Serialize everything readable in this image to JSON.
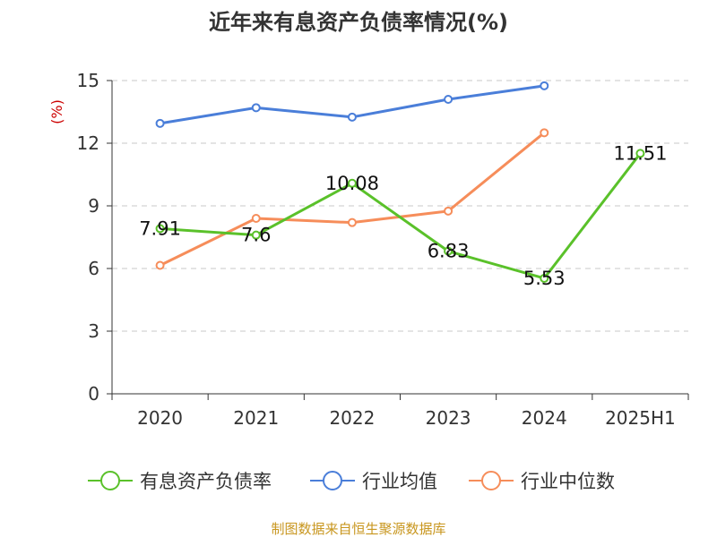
{
  "chart_data": {
    "type": "line",
    "title": "近年来有息资产负债率情况(%)",
    "y_unit": "(%)",
    "categories": [
      "2020",
      "2021",
      "2022",
      "2023",
      "2024",
      "2025H1"
    ],
    "ylim": [
      0,
      15
    ],
    "yticks": [
      0,
      3,
      6,
      9,
      12,
      15
    ],
    "grid": true,
    "legend_position": "bottom",
    "series": [
      {
        "name": "有息资产负债率",
        "color": "#5ac12a",
        "values": [
          7.91,
          7.6,
          10.08,
          6.83,
          5.53,
          11.51
        ],
        "labels": [
          "7.91",
          "7.6",
          "10.08",
          "6.83",
          "5.53",
          "11.51"
        ]
      },
      {
        "name": "行业均值",
        "color": "#4a7ed9",
        "values": [
          12.95,
          13.7,
          13.25,
          14.1,
          14.75,
          null
        ]
      },
      {
        "name": "行业中位数",
        "color": "#f68d5a",
        "values": [
          6.15,
          8.4,
          8.2,
          8.75,
          12.5,
          null
        ]
      }
    ],
    "source": "制图数据来自恒生聚源数据库"
  }
}
